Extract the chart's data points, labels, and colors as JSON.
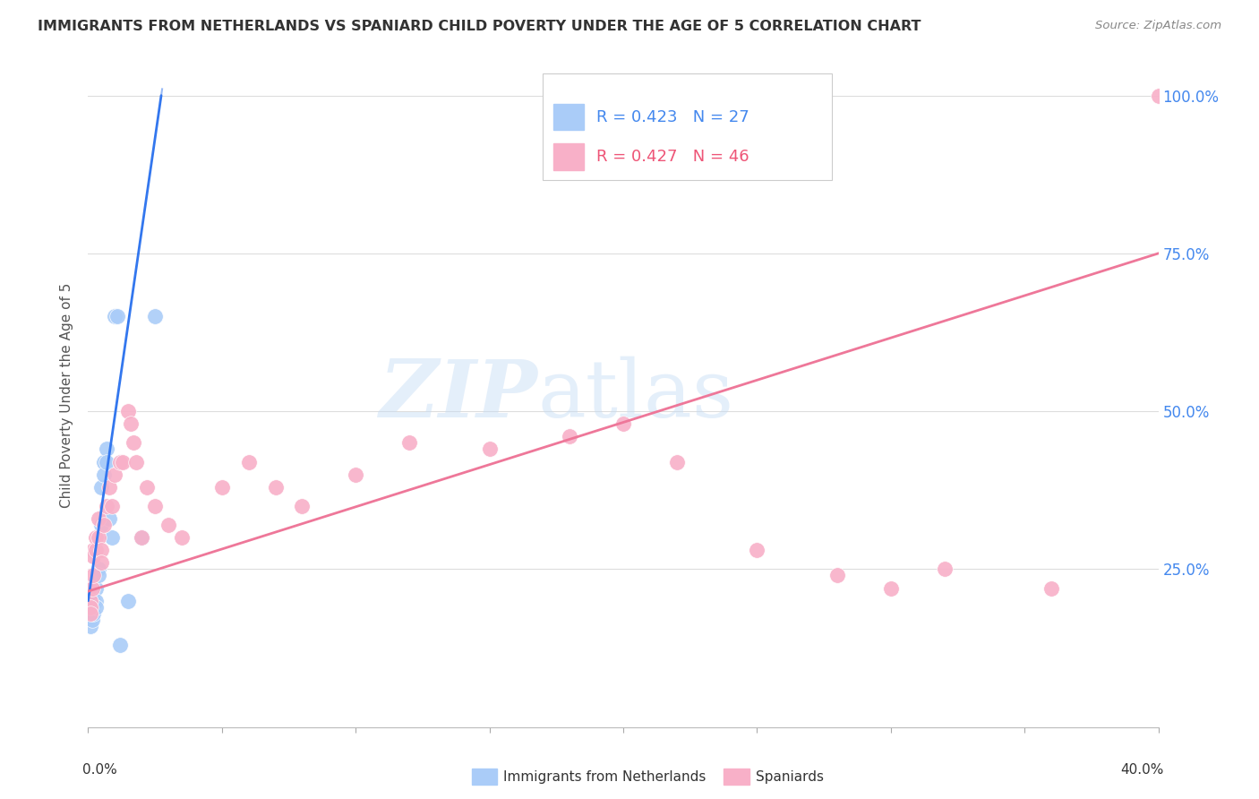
{
  "title": "IMMIGRANTS FROM NETHERLANDS VS SPANIARD CHILD POVERTY UNDER THE AGE OF 5 CORRELATION CHART",
  "source": "Source: ZipAtlas.com",
  "ylabel": "Child Poverty Under the Age of 5",
  "legend1_label": "Immigrants from Netherlands",
  "legend2_label": "Spaniards",
  "R1": "0.423",
  "N1": "27",
  "R2": "0.427",
  "N2": "46",
  "netherlands_color": "#aaccf8",
  "spaniards_color": "#f8b0c8",
  "netherlands_line_color": "#3377ee",
  "spaniards_line_color": "#ee7799",
  "nl_x": [
    0.0005,
    0.0008,
    0.001,
    0.001,
    0.0015,
    0.002,
    0.002,
    0.002,
    0.003,
    0.003,
    0.003,
    0.004,
    0.004,
    0.005,
    0.005,
    0.006,
    0.006,
    0.007,
    0.007,
    0.008,
    0.009,
    0.01,
    0.011,
    0.012,
    0.015,
    0.02,
    0.025
  ],
  "nl_y": [
    0.2,
    0.19,
    0.17,
    0.16,
    0.17,
    0.22,
    0.2,
    0.18,
    0.22,
    0.2,
    0.19,
    0.25,
    0.24,
    0.38,
    0.32,
    0.42,
    0.4,
    0.44,
    0.42,
    0.33,
    0.3,
    0.65,
    0.65,
    0.13,
    0.2,
    0.3,
    0.65
  ],
  "sp_x": [
    0.0005,
    0.001,
    0.001,
    0.001,
    0.0015,
    0.002,
    0.002,
    0.002,
    0.003,
    0.003,
    0.004,
    0.004,
    0.005,
    0.005,
    0.006,
    0.007,
    0.008,
    0.009,
    0.01,
    0.012,
    0.013,
    0.015,
    0.016,
    0.017,
    0.018,
    0.02,
    0.022,
    0.025,
    0.03,
    0.035,
    0.05,
    0.06,
    0.07,
    0.08,
    0.1,
    0.12,
    0.15,
    0.18,
    0.2,
    0.22,
    0.25,
    0.28,
    0.3,
    0.32,
    0.36,
    0.4
  ],
  "sp_y": [
    0.22,
    0.2,
    0.19,
    0.18,
    0.22,
    0.28,
    0.27,
    0.24,
    0.3,
    0.28,
    0.33,
    0.3,
    0.28,
    0.26,
    0.32,
    0.35,
    0.38,
    0.35,
    0.4,
    0.42,
    0.42,
    0.5,
    0.48,
    0.45,
    0.42,
    0.3,
    0.38,
    0.35,
    0.32,
    0.3,
    0.38,
    0.42,
    0.38,
    0.35,
    0.4,
    0.45,
    0.44,
    0.46,
    0.48,
    0.42,
    0.28,
    0.24,
    0.22,
    0.25,
    0.22,
    1.0
  ],
  "nl_line_x0": 0.0,
  "nl_line_y0": 0.2,
  "nl_line_x1": 0.028,
  "nl_line_y1": 1.02,
  "sp_line_x0": 0.0,
  "sp_line_y0": 0.215,
  "sp_line_x1": 0.4,
  "sp_line_y1": 0.75,
  "xlim": [
    0.0,
    0.4
  ],
  "ylim": [
    0.0,
    1.05
  ],
  "yticks": [
    0.0,
    0.25,
    0.5,
    0.75,
    1.0
  ],
  "xtick_count": 9
}
